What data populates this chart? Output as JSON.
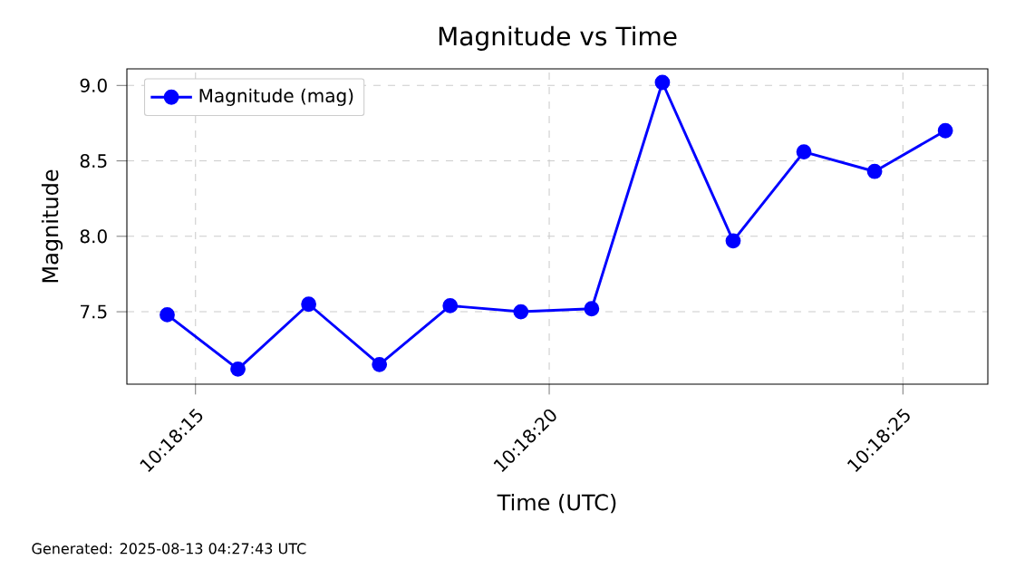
{
  "chart_data": {
    "type": "line",
    "title": "Magnitude vs Time",
    "xlabel": "Time (UTC)",
    "ylabel": "Magnitude",
    "x": [
      10.3040556,
      10.3043333,
      10.3046111,
      10.3048889,
      10.3051667,
      10.3054444,
      10.3057222,
      10.306,
      10.3062778,
      10.3065556,
      10.3068333,
      10.3071111
    ],
    "series": [
      {
        "name": "Magnitude (mag)",
        "color": "#0000ff",
        "values": [
          7.48,
          7.12,
          7.55,
          7.15,
          7.54,
          7.5,
          7.52,
          9.02,
          7.97,
          8.56,
          8.43,
          8.7
        ]
      }
    ],
    "xlim": [
      10.3038972,
      10.3072778
    ],
    "ylim": [
      7.02,
      9.11
    ],
    "xticks": [
      {
        "value": 10.3041667,
        "label": "10:18:15"
      },
      {
        "value": 10.3055556,
        "label": "10:18:20"
      },
      {
        "value": 10.3069444,
        "label": "10:18:25"
      }
    ],
    "yticks": [
      7.5,
      {
        "value": 8,
        "label": "8.0"
      },
      8.5,
      {
        "value": 9,
        "label": "9.0"
      }
    ],
    "grid": true,
    "legend": "top left",
    "marker": "circle",
    "line_style": "solid",
    "annotations": [
      "Generated: 2025-08-13 04:27:43 UTC"
    ]
  }
}
